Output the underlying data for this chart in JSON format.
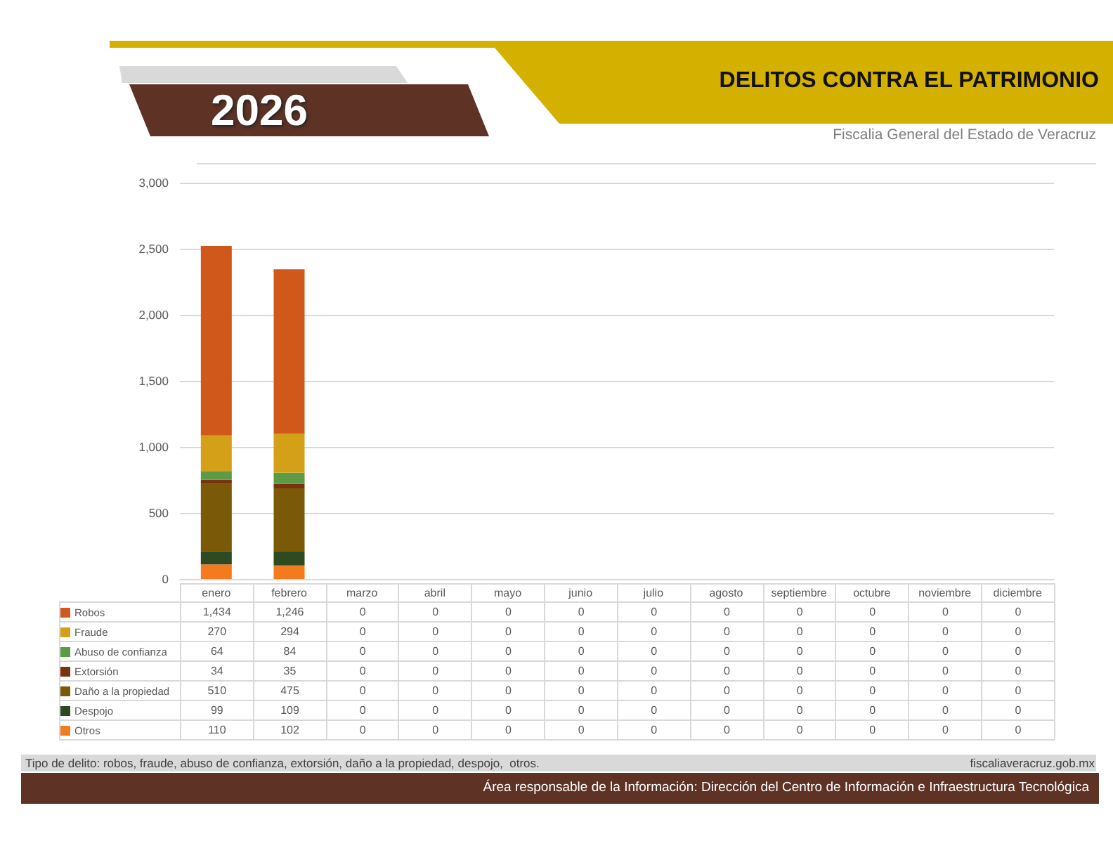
{
  "chart_data": {
    "type": "bar",
    "stacked": true,
    "title": "DELITOS CONTRA EL PATRIMONIO",
    "subtitle": "Fiscalia General del Estado de Veracruz",
    "annotations": [
      "2026",
      "Tipo de delito: robos, fraude, abuso de confianza, extorsión, daño a la propiedad, despojo,  otros.",
      "fiscaliaveracruz.gob.mx",
      "Área responsable de la Información: Dirección del Centro de Información e Infraestructura Tecnológica"
    ],
    "categories": [
      "enero",
      "febrero",
      "marzo",
      "abril",
      "mayo",
      "junio",
      "julio",
      "agosto",
      "septiembre",
      "octubre",
      "noviembre",
      "diciembre"
    ],
    "series": [
      {
        "name": "Otros",
        "color": "#f47a20",
        "values": [
          110,
          102,
          0,
          0,
          0,
          0,
          0,
          0,
          0,
          0,
          0,
          0
        ],
        "value_labels": [
          "110",
          "102",
          "0",
          "0",
          "0",
          "0",
          "0",
          "0",
          "0",
          "0",
          "0",
          "0"
        ]
      },
      {
        "name": "Despojo",
        "color": "#2e4a22",
        "values": [
          99,
          109,
          0,
          0,
          0,
          0,
          0,
          0,
          0,
          0,
          0,
          0
        ],
        "value_labels": [
          "99",
          "109",
          "0",
          "0",
          "0",
          "0",
          "0",
          "0",
          "0",
          "0",
          "0",
          "0"
        ]
      },
      {
        "name": "Daño a la propiedad",
        "color": "#7a5a08",
        "values": [
          510,
          475,
          0,
          0,
          0,
          0,
          0,
          0,
          0,
          0,
          0,
          0
        ],
        "value_labels": [
          "510",
          "475",
          "0",
          "0",
          "0",
          "0",
          "0",
          "0",
          "0",
          "0",
          "0",
          "0"
        ]
      },
      {
        "name": "Extorsión",
        "color": "#7a3212",
        "values": [
          34,
          35,
          0,
          0,
          0,
          0,
          0,
          0,
          0,
          0,
          0,
          0
        ],
        "value_labels": [
          "34",
          "35",
          "0",
          "0",
          "0",
          "0",
          "0",
          "0",
          "0",
          "0",
          "0",
          "0"
        ]
      },
      {
        "name": "Abuso de confianza",
        "color": "#5b9b45",
        "values": [
          64,
          84,
          0,
          0,
          0,
          0,
          0,
          0,
          0,
          0,
          0,
          0
        ],
        "value_labels": [
          "64",
          "84",
          "0",
          "0",
          "0",
          "0",
          "0",
          "0",
          "0",
          "0",
          "0",
          "0"
        ]
      },
      {
        "name": "Fraude",
        "color": "#d4a018",
        "values": [
          270,
          294,
          0,
          0,
          0,
          0,
          0,
          0,
          0,
          0,
          0,
          0
        ],
        "value_labels": [
          "270",
          "294",
          "0",
          "0",
          "0",
          "0",
          "0",
          "0",
          "0",
          "0",
          "0",
          "0"
        ]
      },
      {
        "name": "Robos",
        "color": "#d0581a",
        "values": [
          1434,
          1246,
          0,
          0,
          0,
          0,
          0,
          0,
          0,
          0,
          0,
          0
        ],
        "value_labels": [
          "1,434",
          "1,246",
          "0",
          "0",
          "0",
          "0",
          "0",
          "0",
          "0",
          "0",
          "0",
          "0"
        ]
      }
    ],
    "ylim": [
      0,
      3000
    ],
    "yticks": [
      0,
      500,
      {
        "value": 1000,
        "label": "1,000"
      },
      {
        "value": 1500,
        "label": "1,500"
      },
      {
        "value": 2000,
        "label": "2,000"
      },
      {
        "value": 2500,
        "label": "2,500"
      },
      {
        "value": 3000,
        "label": "3,000"
      }
    ],
    "grid": "y",
    "legend": "bottom"
  }
}
